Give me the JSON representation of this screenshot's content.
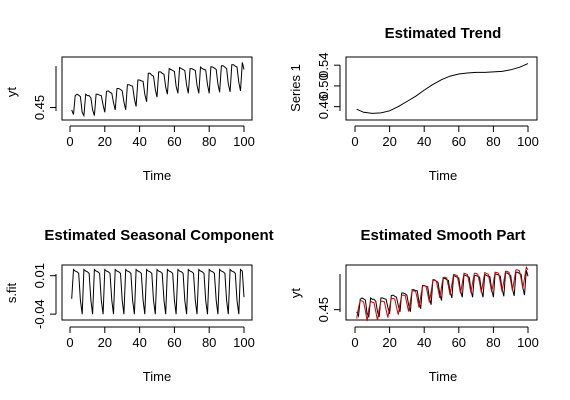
{
  "chart_data": [
    {
      "type": "line",
      "title": "",
      "xlabel": "Time",
      "ylabel": "yt",
      "xlim": [
        0,
        100
      ],
      "ylim": [
        0.43,
        0.55
      ],
      "xticks": [
        "0",
        "20",
        "40",
        "60",
        "80",
        "100"
      ],
      "yticks": [
        "0.45"
      ],
      "series": [
        {
          "color": "#000000",
          "x": [
            1,
            2,
            3,
            4,
            5,
            6,
            7,
            8,
            9,
            10,
            11,
            12,
            13,
            14,
            15,
            16,
            17,
            18,
            19,
            20,
            21,
            22,
            23,
            24,
            25,
            26,
            27,
            28,
            29,
            30,
            31,
            32,
            33,
            34,
            35,
            36,
            37,
            38,
            39,
            40,
            41,
            42,
            43,
            44,
            45,
            46,
            47,
            48,
            49,
            50,
            51,
            52,
            53,
            54,
            55,
            56,
            57,
            58,
            59,
            60,
            61,
            62,
            63,
            64,
            65,
            66,
            67,
            68,
            69,
            70,
            71,
            72,
            73,
            74,
            75,
            76,
            77,
            78,
            79,
            80,
            81,
            82,
            83,
            84,
            85,
            86,
            87,
            88,
            89,
            90,
            91,
            92,
            93,
            94,
            95,
            96,
            97,
            98,
            99,
            100
          ],
          "values": [
            0.445,
            0.435,
            0.475,
            0.478,
            0.476,
            0.473,
            0.44,
            0.433,
            0.478,
            0.475,
            0.475,
            0.47,
            0.445,
            0.433,
            0.478,
            0.478,
            0.476,
            0.475,
            0.455,
            0.44,
            0.484,
            0.485,
            0.482,
            0.48,
            0.46,
            0.445,
            0.49,
            0.49,
            0.488,
            0.485,
            0.462,
            0.445,
            0.498,
            0.498,
            0.496,
            0.495,
            0.468,
            0.452,
            0.508,
            0.508,
            0.506,
            0.505,
            0.478,
            0.462,
            0.522,
            0.522,
            0.518,
            0.516,
            0.488,
            0.472,
            0.525,
            0.525,
            0.522,
            0.52,
            0.493,
            0.478,
            0.532,
            0.53,
            0.528,
            0.526,
            0.495,
            0.48,
            0.534,
            0.532,
            0.53,
            0.528,
            0.497,
            0.48,
            0.532,
            0.532,
            0.53,
            0.528,
            0.497,
            0.48,
            0.535,
            0.532,
            0.53,
            0.529,
            0.498,
            0.48,
            0.536,
            0.535,
            0.533,
            0.53,
            0.5,
            0.482,
            0.538,
            0.538,
            0.535,
            0.532,
            0.5,
            0.483,
            0.54,
            0.54,
            0.537,
            0.535,
            0.503,
            0.485,
            0.545,
            0.53
          ]
        }
      ]
    },
    {
      "type": "line",
      "title": "Estimated Trend",
      "xlabel": "Time",
      "ylabel": "Series 1",
      "xlim": [
        0,
        100
      ],
      "ylim": [
        0.44,
        0.55
      ],
      "xticks": [
        "0",
        "20",
        "40",
        "60",
        "80",
        "100"
      ],
      "yticks": [
        "0.46",
        "0.50",
        "0.54"
      ],
      "series": [
        {
          "color": "#000000",
          "x": [
            1,
            5,
            10,
            15,
            20,
            25,
            30,
            35,
            40,
            45,
            50,
            55,
            60,
            65,
            70,
            75,
            80,
            85,
            90,
            95,
            100
          ],
          "values": [
            0.455,
            0.449,
            0.447,
            0.448,
            0.452,
            0.46,
            0.47,
            0.48,
            0.492,
            0.503,
            0.512,
            0.519,
            0.523,
            0.525,
            0.526,
            0.526,
            0.527,
            0.528,
            0.531,
            0.536,
            0.543
          ]
        }
      ]
    },
    {
      "type": "line",
      "title": "Estimated Seasonal Component",
      "xlabel": "Time",
      "ylabel": "s.fit",
      "xlim": [
        0,
        100
      ],
      "ylim": [
        -0.045,
        0.02
      ],
      "xticks": [
        "0",
        "20",
        "40",
        "60",
        "80",
        "100"
      ],
      "yticks": [
        "-0.04",
        "0.01"
      ],
      "series": [
        {
          "color": "#000000",
          "pattern_period": 6,
          "pattern": [
            0.018,
            0.016,
            0.015,
            0.013,
            -0.022,
            -0.04
          ],
          "x": [
            1,
            100
          ],
          "start_value": -0.02,
          "end_value": -0.018
        }
      ]
    },
    {
      "type": "line",
      "title": "Estimated Smooth Part",
      "xlabel": "Time",
      "ylabel": "yt",
      "xlim": [
        0,
        100
      ],
      "ylim": [
        0.43,
        0.55
      ],
      "xticks": [
        "0",
        "20",
        "40",
        "60",
        "80",
        "100"
      ],
      "yticks": [
        "0.45"
      ],
      "series": [
        {
          "color": "#000000",
          "ref": "observed"
        },
        {
          "color": "#cc0000",
          "ref": "smooth"
        }
      ]
    }
  ]
}
